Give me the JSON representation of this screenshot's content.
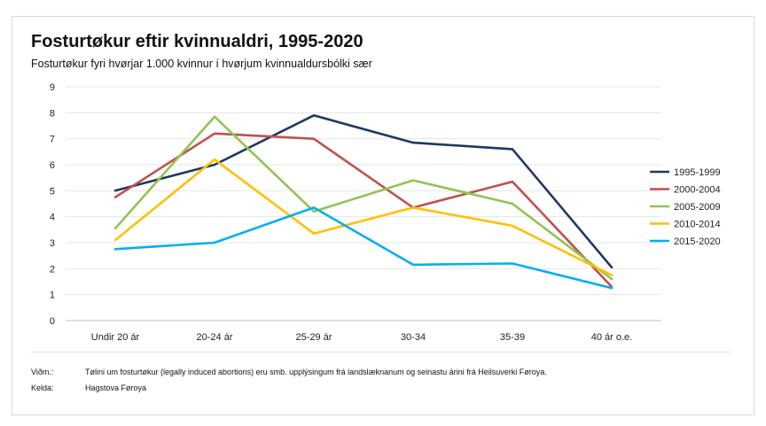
{
  "header": {
    "title": "Fosturtøkur eftir kvinnualdri, 1995-2020",
    "subtitle": "Fosturtøkur fyri hvørjar 1.000 kvinnur í hvørjum kvinnualdursbólki sær"
  },
  "notes": {
    "note_label": "Viðm.:",
    "note_text": "Tølini um fosturtøkur (legally induced abortions) eru smb. upplýsingum frá landslæknanum og seinastu árini frá Heilsuverki Føroya.",
    "source_label": "Kelda:",
    "source_text": "Hagstova Føroya"
  },
  "chart_data": {
    "type": "line",
    "title": "Fosturtøkur eftir kvinnualdri, 1995-2020",
    "subtitle": "Fosturtøkur fyri hvørjar 1.000 kvinnur í hvørjum kvinnualdursbólki sær",
    "xlabel": "",
    "ylabel": "",
    "categories": [
      "Undir 20 ár",
      "20-24 ár",
      "25-29 ár",
      "30-34",
      "35-39",
      "40 ár o.e."
    ],
    "ylim": [
      0,
      9
    ],
    "yticks": [
      "0",
      "1",
      "2",
      "3",
      "4",
      "5",
      "6",
      "7",
      "8",
      "9"
    ],
    "grid": true,
    "legend_position": "right",
    "series": [
      {
        "name": "1995-1999",
        "color": "#1f3864",
        "values": [
          5.0,
          6.0,
          7.9,
          6.85,
          6.6,
          2.05
        ]
      },
      {
        "name": "2000-2004",
        "color": "#c0504d",
        "values": [
          4.75,
          7.2,
          7.0,
          4.35,
          5.35,
          1.3
        ]
      },
      {
        "name": "2005-2009",
        "color": "#92c353",
        "values": [
          3.55,
          7.85,
          4.2,
          5.4,
          4.5,
          1.6
        ]
      },
      {
        "name": "2010-2014",
        "color": "#ffc000",
        "values": [
          3.1,
          6.2,
          3.35,
          4.35,
          3.65,
          1.75
        ]
      },
      {
        "name": "2015-2020",
        "color": "#00b0f0",
        "values": [
          2.75,
          3.0,
          4.35,
          2.15,
          2.2,
          1.25
        ]
      }
    ]
  }
}
